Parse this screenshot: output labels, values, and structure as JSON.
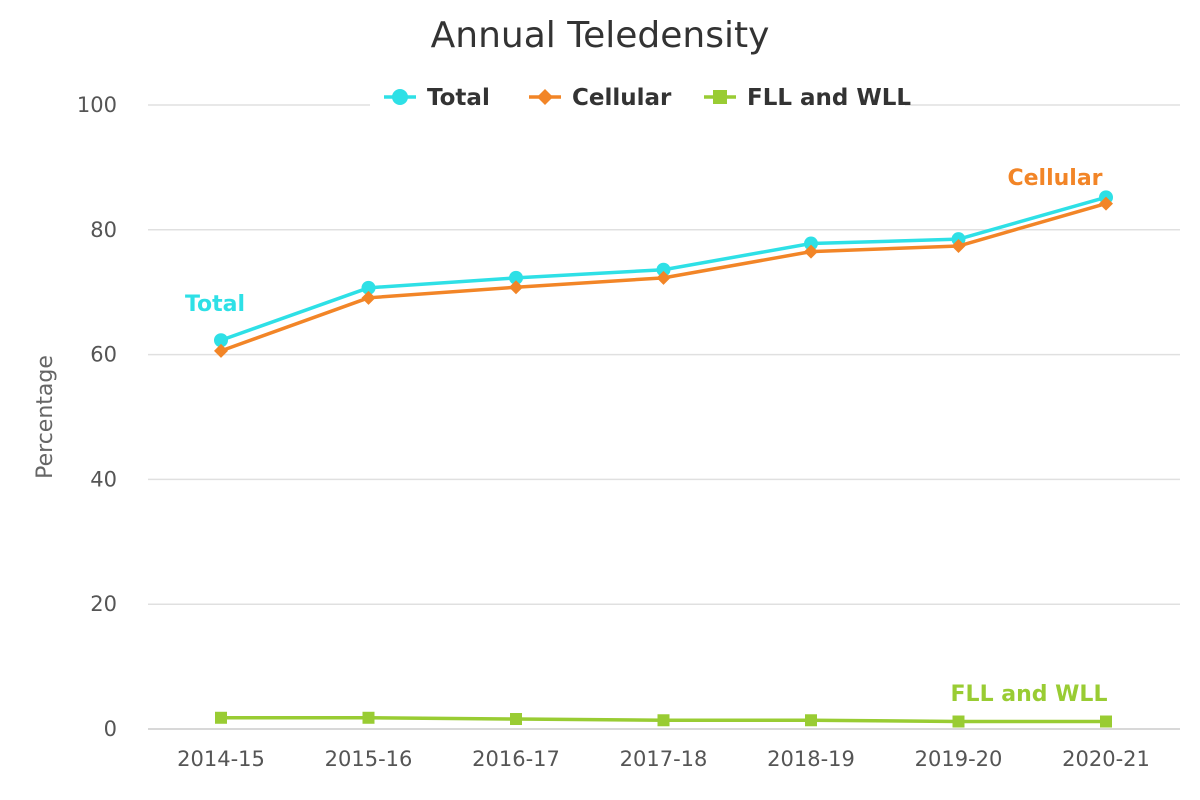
{
  "chart_data": {
    "type": "line",
    "title": "Annual Teledensity",
    "xlabel": "",
    "ylabel": "Percentage",
    "categories": [
      "2014-15",
      "2015-16",
      "2016-17",
      "2017-18",
      "2018-19",
      "2019-20",
      "2020-21"
    ],
    "ylim": [
      0,
      100
    ],
    "yticks": [
      "0",
      "20",
      "40",
      "60",
      "80",
      "100"
    ],
    "grid": true,
    "legend_position": "top-center",
    "series": [
      {
        "name": "Total",
        "marker": "circle",
        "color": "#2ee0e6",
        "values": [
          62.3,
          70.7,
          72.3,
          73.6,
          77.8,
          78.5,
          85.2
        ],
        "label": "Total"
      },
      {
        "name": "Cellular",
        "marker": "diamond",
        "color": "#f28527",
        "values": [
          60.6,
          69.1,
          70.8,
          72.3,
          76.5,
          77.4,
          84.2
        ],
        "label": "Cellular"
      },
      {
        "name": "FLL and WLL",
        "marker": "square",
        "color": "#99cc33",
        "values": [
          1.8,
          1.8,
          1.6,
          1.4,
          1.4,
          1.2,
          1.2
        ],
        "label": "FLL and WLL"
      }
    ]
  }
}
